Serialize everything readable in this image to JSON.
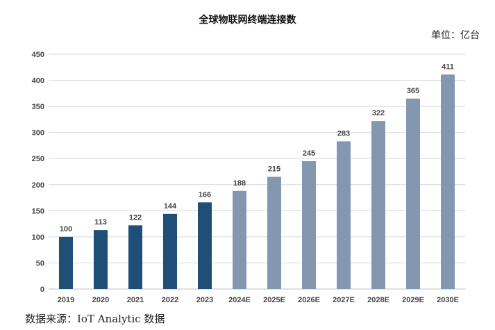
{
  "chart_data": {
    "type": "bar",
    "title": "全球物联网终端连接数",
    "unit_label": "单位：亿台",
    "source": "数据来源：IoT Analytic 数据",
    "categories": [
      "2019",
      "2020",
      "2021",
      "2022",
      "2023",
      "2024E",
      "2025E",
      "2026E",
      "2027E",
      "2028E",
      "2029E",
      "2030E"
    ],
    "values": [
      100,
      113,
      122,
      144,
      166,
      188,
      215,
      245,
      283,
      322,
      365,
      411
    ],
    "actual_color": "#1f4e79",
    "forecast_color": "#8497b0",
    "actual_count": 5,
    "ylim": [
      0,
      450
    ],
    "yticks": [
      0,
      50,
      100,
      150,
      200,
      250,
      300,
      350,
      400,
      450
    ],
    "xlabel": "",
    "ylabel": "",
    "grid": true,
    "legend": "none"
  }
}
